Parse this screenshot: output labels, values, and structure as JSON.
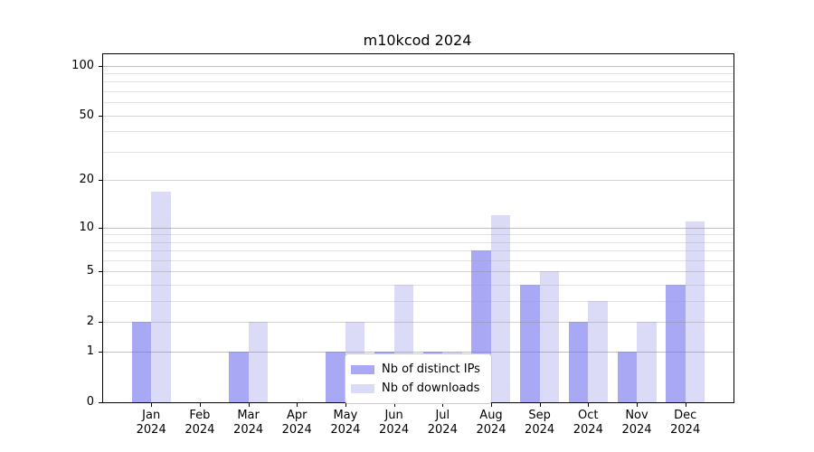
{
  "title": "m10kcod 2024",
  "colors": {
    "ips_bar": "#a8a8f4",
    "downloads_bar": "#dbdbf8",
    "axis": "#000000",
    "text": "#000000",
    "grid_power10": "#808080",
    "grid_labeled": "#8c8c8c",
    "grid_minor": "#a0a0a0",
    "legend_border": "#cccccc",
    "legend_bg": "#ffffff"
  },
  "y_axis": {
    "tick_values": [
      0,
      1,
      2,
      5,
      10,
      20,
      50,
      100
    ],
    "minor_values": [
      3,
      4,
      6,
      7,
      8,
      9,
      30,
      40,
      60,
      70,
      80,
      90
    ]
  },
  "legend": {
    "items": [
      {
        "label": "Nb of distinct IPs",
        "color_key": "ips_bar"
      },
      {
        "label": "Nb of downloads",
        "color_key": "downloads_bar"
      }
    ]
  },
  "chart_data": {
    "type": "bar",
    "title": "m10kcod 2024",
    "categories": [
      "Jan 2024",
      "Feb 2024",
      "Mar 2024",
      "Apr 2024",
      "May 2024",
      "Jun 2024",
      "Jul 2024",
      "Aug 2024",
      "Sep 2024",
      "Oct 2024",
      "Nov 2024",
      "Dec 2024"
    ],
    "series": [
      {
        "name": "Nb of distinct IPs",
        "values": [
          2,
          0,
          1,
          0,
          1,
          1,
          1,
          7,
          4,
          2,
          1,
          4
        ]
      },
      {
        "name": "Nb of downloads",
        "values": [
          17,
          0,
          2,
          0,
          2,
          4,
          1,
          12,
          5,
          3,
          2,
          11
        ]
      }
    ],
    "xlabel": "",
    "ylabel": "",
    "yscale": "log10(1+x)",
    "y_ticks": [
      0,
      1,
      2,
      5,
      10,
      20,
      50,
      100
    ],
    "ylim": [
      0,
      117
    ],
    "grid": true,
    "legend_position": "lower center"
  }
}
